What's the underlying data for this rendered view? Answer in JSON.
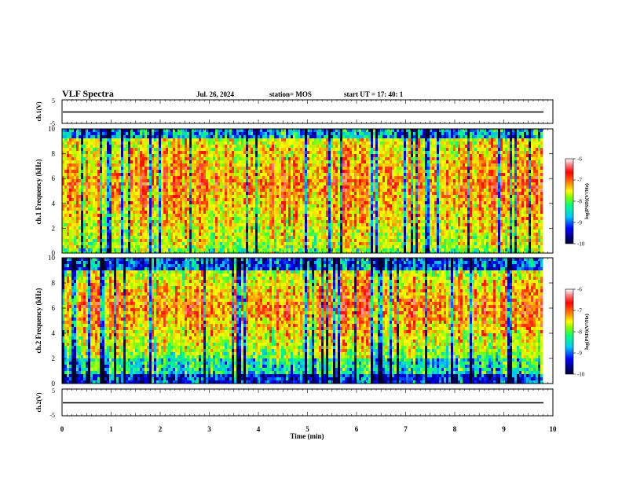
{
  "header": {
    "title": "VLF Spectra",
    "date": "Jul. 26, 2024",
    "station": "station= MOS",
    "start_time": "start UT = 17: 40: 1"
  },
  "chart_data": [
    {
      "type": "line",
      "panel": "ch1-waveform",
      "ylabel": "ch.1(V)",
      "ylim": [
        -5,
        5
      ],
      "ytick_labels": [
        "5",
        "-5"
      ],
      "x": [
        0,
        9.8
      ],
      "values": [
        -0.3,
        -0.3
      ],
      "color": "#000000"
    },
    {
      "type": "heatmap",
      "panel": "ch1-spectrogram",
      "ylabel": "ch.1 Frequency (kHz)",
      "ylim": [
        0,
        10
      ],
      "ytick_labels": [
        "0",
        "2",
        "4",
        "6",
        "8",
        "10"
      ],
      "xlim": [
        0,
        9.8
      ],
      "colorbar": {
        "label": "log(PSD)(V²/Hz)",
        "range": [
          -10,
          -6
        ],
        "tick_labels": [
          "-6",
          "-7",
          "-8",
          "-9",
          "-10"
        ]
      },
      "description_colormap": [
        "#000066",
        "#0000ff",
        "#00ccff",
        "#00ff66",
        "#ffff00",
        "#ff8800",
        "#ff0000",
        "#ffffff"
      ]
    },
    {
      "type": "heatmap",
      "panel": "ch2-spectrogram",
      "ylabel": "ch.2 Frequency (kHz)",
      "ylim": [
        0,
        10
      ],
      "ytick_labels": [
        "0",
        "2",
        "4",
        "6",
        "8",
        "10"
      ],
      "xlim": [
        0,
        9.8
      ],
      "colorbar": {
        "label": "log(PSD)(V²/Hz)",
        "range": [
          -10,
          -6
        ],
        "tick_labels": [
          "-6",
          "-7",
          "-8",
          "-9",
          "-10"
        ]
      }
    },
    {
      "type": "line",
      "panel": "ch2-waveform",
      "ylabel": "ch.2(V)",
      "ylim": [
        -5,
        5
      ],
      "ytick_labels": [
        "5",
        "-5"
      ],
      "x": [
        0,
        9.8
      ],
      "values": [
        -0.3,
        -0.3
      ],
      "color": "#000000"
    }
  ],
  "xaxis": {
    "label": "Time (min)",
    "range": [
      0,
      10
    ],
    "tick_labels": [
      "0",
      "1",
      "2",
      "3",
      "4",
      "5",
      "6",
      "7",
      "8",
      "9",
      "10"
    ]
  }
}
